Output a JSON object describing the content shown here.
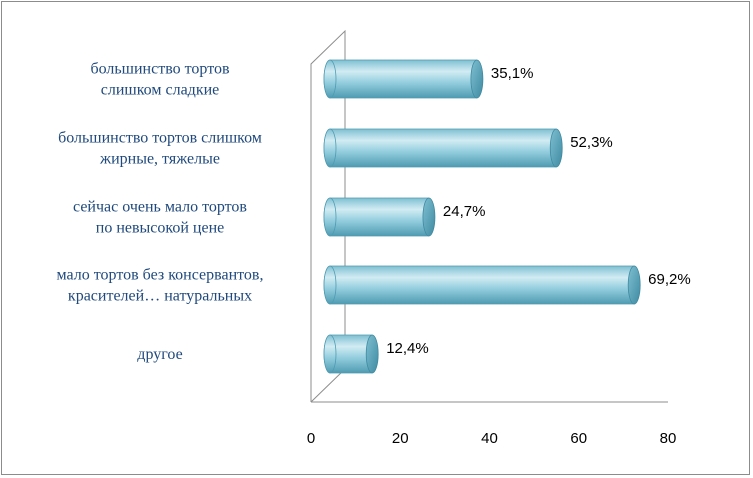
{
  "chart_data": {
    "type": "bar",
    "orientation": "horizontal",
    "style": "3d-cylinder",
    "categories": [
      [
        "большинство тортов",
        "слишком сладкие"
      ],
      [
        "большинство тортов слишком",
        "жирные, тяжелые"
      ],
      [
        "сейчас очень мало тортов",
        "по невысокой цене"
      ],
      [
        "мало тортов без консервантов,",
        "красителей… натуральных"
      ],
      [
        "другое"
      ]
    ],
    "values": [
      35.1,
      52.3,
      24.7,
      69.2,
      12.4
    ],
    "value_labels": [
      "35,1%",
      "52,3%",
      "24,7%",
      "69,2%",
      "12,4%"
    ],
    "xlim": [
      0,
      80
    ],
    "xticks": [
      "0",
      "20",
      "40",
      "60",
      "80"
    ],
    "title": "",
    "xlabel": "",
    "ylabel": "",
    "grid": false,
    "legend": "none",
    "colors": {
      "bar_fill": "#93cddd",
      "bar_light": "#c6e6ef",
      "bar_dark": "#4f9bb2",
      "bar_cap": "#5aa7bd",
      "category_text": "#1f497d",
      "axis": "#8c8c8c"
    }
  }
}
